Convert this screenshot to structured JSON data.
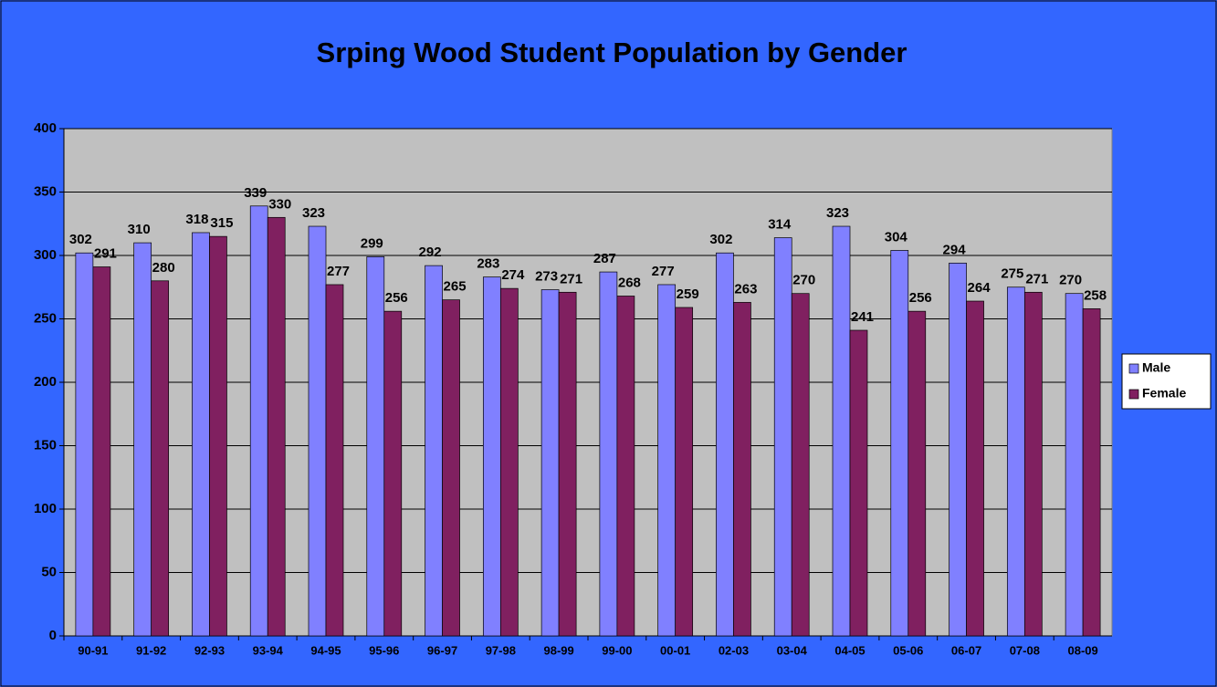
{
  "chart_data": {
    "type": "bar",
    "title": "Srping Wood Student Population by Gender",
    "categories": [
      "90-91",
      "91-92",
      "92-93",
      "93-94",
      "94-95",
      "95-96",
      "96-97",
      "97-98",
      "98-99",
      "99-00",
      "00-01",
      "02-03",
      "03-04",
      "04-05",
      "05-06",
      "06-07",
      "07-08",
      "08-09"
    ],
    "series": [
      {
        "name": "Male",
        "color": "#8080ff",
        "values": [
          302,
          310,
          318,
          339,
          323,
          299,
          292,
          283,
          273,
          287,
          277,
          302,
          314,
          323,
          304,
          294,
          275,
          270
        ]
      },
      {
        "name": "Female",
        "color": "#802060",
        "values": [
          291,
          280,
          315,
          330,
          277,
          256,
          265,
          274,
          271,
          268,
          259,
          263,
          270,
          241,
          256,
          264,
          271,
          258
        ]
      }
    ],
    "ylim": [
      0,
      400
    ],
    "yticks": [
      0,
      50,
      100,
      150,
      200,
      250,
      300,
      350,
      400
    ],
    "grid": true,
    "legend": "right"
  }
}
